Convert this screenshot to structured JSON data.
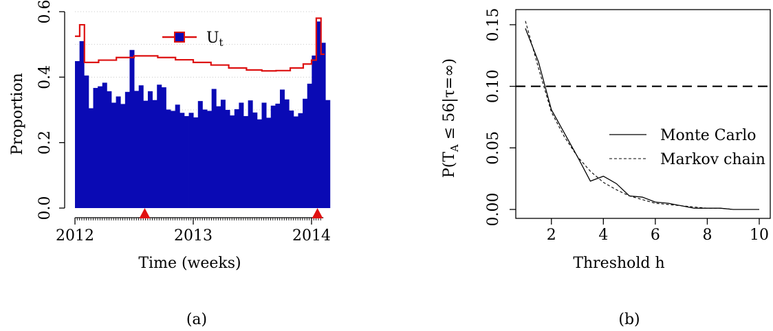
{
  "chart_data": [
    {
      "type": "bar",
      "panel_label": "(a)",
      "xlabel": "Time (weeks)",
      "ylabel": "Proportion",
      "ylim": [
        0,
        0.6
      ],
      "yticks": [
        "0.0",
        "0.2",
        "0.4",
        "0.6"
      ],
      "xticks": [
        "2012",
        "2013",
        "2014"
      ],
      "grid": "horizontal dotted",
      "legend": {
        "position": "top-center",
        "entries": [
          {
            "label": "U",
            "subscript": "t",
            "color": "#dd1111"
          }
        ]
      },
      "bar_color": "#0a0ab4",
      "x_start": 2012.0,
      "bin_width_years": 0.0385,
      "bar_values": [
        0.449,
        0.51,
        0.405,
        0.305,
        0.367,
        0.372,
        0.383,
        0.357,
        0.322,
        0.341,
        0.318,
        0.355,
        0.483,
        0.358,
        0.375,
        0.328,
        0.357,
        0.33,
        0.377,
        0.369,
        0.301,
        0.297,
        0.316,
        0.291,
        0.281,
        0.291,
        0.277,
        0.327,
        0.301,
        0.297,
        0.364,
        0.311,
        0.331,
        0.3,
        0.283,
        0.302,
        0.322,
        0.281,
        0.329,
        0.292,
        0.271,
        0.322,
        0.276,
        0.313,
        0.319,
        0.362,
        0.332,
        0.298,
        0.28,
        0.29,
        0.334,
        0.38,
        0.466,
        0.57,
        0.505,
        0.33
      ],
      "ut_series": {
        "name": "U",
        "subscript": "t",
        "color": "#dd1111",
        "step_x": [
          2012.0,
          2012.04,
          2012.08,
          2012.2,
          2012.35,
          2012.5,
          2012.6,
          2012.7,
          2012.85,
          2013.0,
          2013.15,
          2013.3,
          2013.45,
          2013.58,
          2013.7,
          2013.82,
          2013.93,
          2014.0,
          2014.04,
          2014.08,
          2014.11
        ],
        "step_y": [
          0.525,
          0.56,
          0.445,
          0.452,
          0.46,
          0.465,
          0.465,
          0.46,
          0.453,
          0.445,
          0.437,
          0.428,
          0.422,
          0.419,
          0.42,
          0.428,
          0.44,
          0.452,
          0.58,
          0.47,
          0.47
        ],
        "spikes": [
          {
            "x": 2012.0,
            "y": 0.56
          },
          {
            "x": 2014.0,
            "y": 0.58
          }
        ]
      },
      "alarms": [
        2012.59,
        2014.05
      ]
    },
    {
      "type": "line",
      "panel_label": "(b)",
      "xlabel": "Threshold h",
      "ylabel": "P(T_A ≤ 56|τ=∞)",
      "ylabel_parts": {
        "lead": "P(",
        "main": "T",
        "sub": "A",
        "tail": " ≤ 56|τ=∞)"
      },
      "xlim": [
        1,
        10
      ],
      "ylim": [
        0,
        0.15
      ],
      "xticks": [
        "2",
        "4",
        "6",
        "8",
        "10"
      ],
      "yticks": [
        "0.00",
        "0.05",
        "0.10",
        "0.15"
      ],
      "legend": {
        "position": "right-center"
      },
      "reference_line": {
        "y": 0.1,
        "style": "dashed"
      },
      "series": [
        {
          "name": "Monte Carlo",
          "style": "solid",
          "x": [
            1,
            1.5,
            2,
            2.5,
            3,
            3.5,
            4,
            4.5,
            5,
            5.5,
            6,
            6.5,
            7,
            7.5,
            8,
            8.5,
            9,
            9.5,
            10
          ],
          "y": [
            0.147,
            0.12,
            0.081,
            0.062,
            0.043,
            0.023,
            0.027,
            0.021,
            0.011,
            0.01,
            0.006,
            0.005,
            0.003,
            0.001,
            0.001,
            0.001,
            0.0,
            0.0,
            0.0
          ]
        },
        {
          "name": "Markov chain",
          "style": "dashed",
          "x": [
            1,
            1.5,
            2,
            2.5,
            3,
            3.5,
            4,
            4.5,
            5,
            5.5,
            6,
            6.5,
            7,
            7.5,
            8,
            8.5,
            9,
            9.5,
            10
          ],
          "y": [
            0.153,
            0.115,
            0.079,
            0.059,
            0.043,
            0.031,
            0.022,
            0.016,
            0.011,
            0.008,
            0.005,
            0.004,
            0.003,
            0.002,
            0.001,
            0.001,
            0.0,
            0.0,
            0.0
          ]
        }
      ]
    }
  ]
}
